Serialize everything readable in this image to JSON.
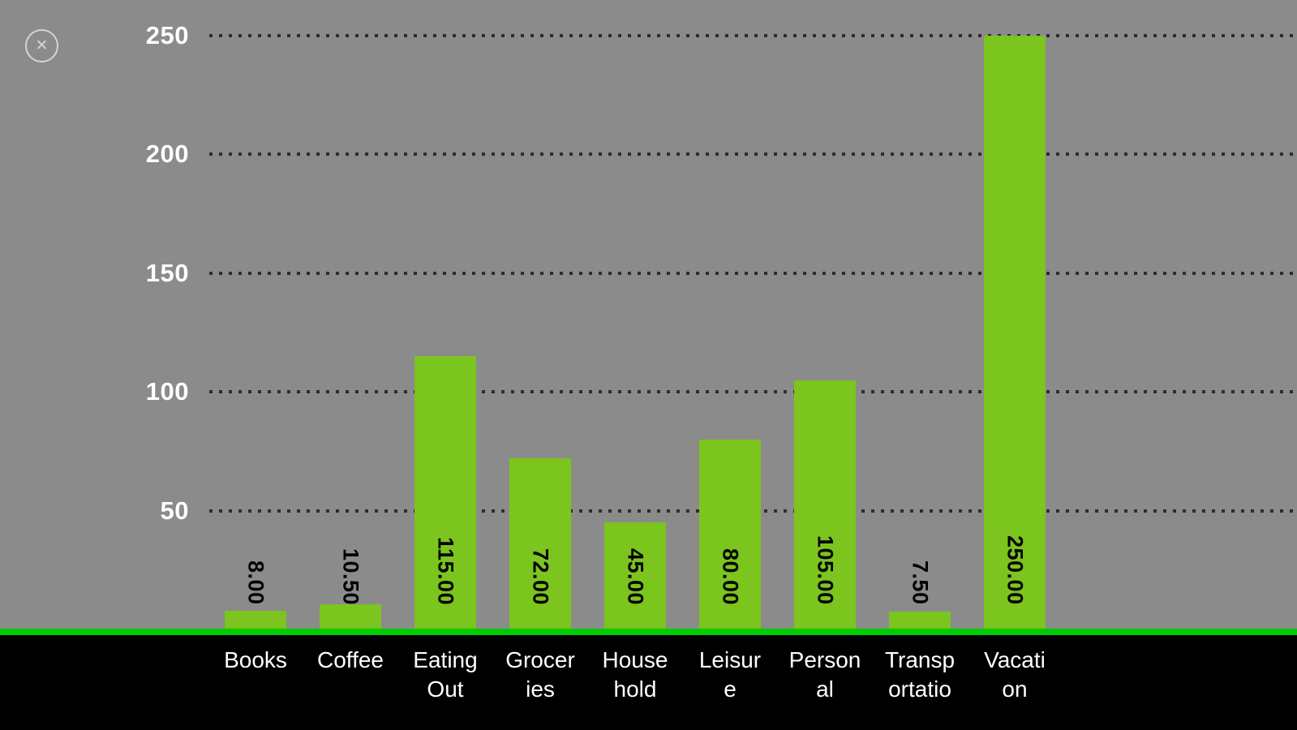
{
  "chart_data": {
    "type": "bar",
    "title": "",
    "xlabel": "",
    "ylabel": "",
    "categories": [
      "Books",
      "Coffee",
      "Eating Out",
      "Groceries",
      "Household",
      "Leisure",
      "Personal",
      "Transportation",
      "Vacation"
    ],
    "category_display_labels": [
      "Books",
      "Coffee",
      "Eating\nOut",
      "Grocer\nies",
      "House\nhold",
      "Leisur\ne",
      "Person\nal",
      "Transp\nortatio",
      "Vacati\non"
    ],
    "values": [
      8.0,
      10.5,
      115.0,
      72.0,
      45.0,
      80.0,
      105.0,
      7.5,
      250.0
    ],
    "value_labels": [
      "8.00",
      "10.50",
      "115.00",
      "72.00",
      "45.00",
      "80.00",
      "105.00",
      "7.50",
      "250.00"
    ],
    "y_ticks": [
      250,
      200,
      150,
      100,
      50
    ],
    "ylim": [
      0,
      250
    ],
    "grid": true,
    "legend": false,
    "bar_color": "#7cc41e",
    "baseline_color": "#00cc00",
    "background_color": "#8b8b8b",
    "axis_band_color": "#000000",
    "value_label_color": "#000000",
    "tick_label_color": "#ffffff"
  },
  "close_button": {
    "glyph": "✕"
  }
}
